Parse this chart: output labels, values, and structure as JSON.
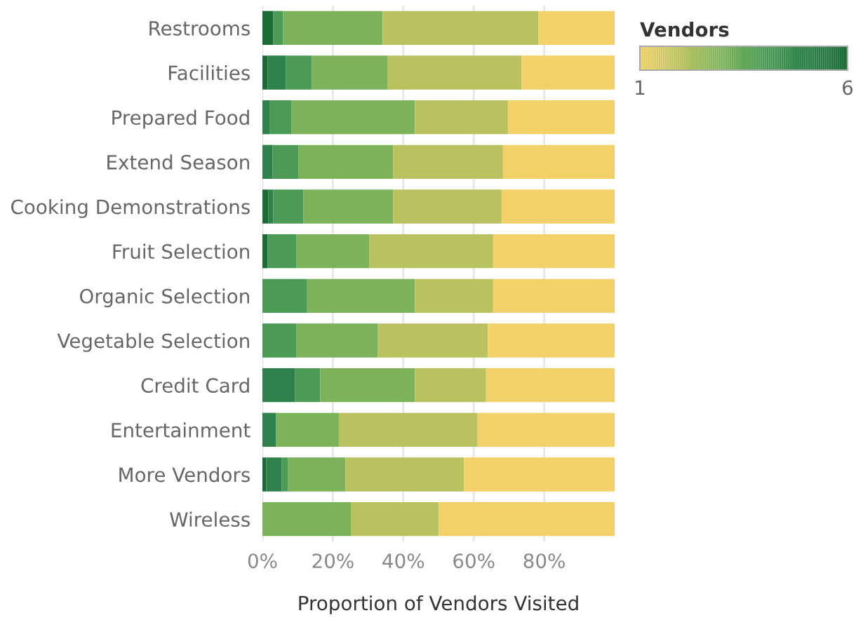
{
  "chart_data": {
    "type": "bar",
    "orientation": "horizontal",
    "stacked": true,
    "categories": [
      "Restrooms",
      "Facilities",
      "Prepared Food",
      "Extend Season",
      "Cooking Demonstrations",
      "Fruit Selection",
      "Organic Selection",
      "Vegetable Selection",
      "Credit Card",
      "Entertainment",
      "More Vendors",
      "Wireless"
    ],
    "series": [
      {
        "color": "#1b6b35",
        "values": [
          3.1,
          1.5,
          0,
          0,
          1.7,
          1.5,
          0,
          0,
          0,
          0,
          1.1,
          0
        ]
      },
      {
        "color": "#2e814a",
        "values": [
          0,
          5.2,
          2.0,
          2.9,
          1.4,
          0,
          0,
          0,
          9.3,
          3.9,
          4.4,
          0
        ]
      },
      {
        "color": "#4b9b56",
        "values": [
          2.8,
          7.3,
          6.3,
          7.4,
          8.5,
          8.2,
          12.7,
          9.7,
          7.1,
          0,
          1.8,
          0
        ]
      },
      {
        "color": "#7bb25a",
        "values": [
          28.2,
          21.6,
          35.0,
          26.8,
          25.5,
          20.6,
          30.6,
          23.1,
          26.9,
          17.8,
          16.3,
          25.1
        ]
      },
      {
        "color": "#b8c25f",
        "values": [
          44.3,
          38.0,
          26.4,
          31.2,
          30.8,
          35.2,
          22.2,
          31.2,
          20.2,
          39.4,
          33.6,
          25.0
        ]
      },
      {
        "color": "#f2d16b",
        "values": [
          21.6,
          26.4,
          30.3,
          31.7,
          32.1,
          34.5,
          34.5,
          36.0,
          36.5,
          38.9,
          42.8,
          49.9
        ]
      }
    ],
    "xlim": [
      0,
      100
    ],
    "xticks": [
      {
        "value": 0,
        "label": "0%"
      },
      {
        "value": 20,
        "label": "20%"
      },
      {
        "value": 40,
        "label": "40%"
      },
      {
        "value": 60,
        "label": "60%"
      },
      {
        "value": 80,
        "label": "80%"
      }
    ],
    "xlabel": "Proportion of Vendors Visited",
    "grid": "x",
    "clabel": "Vendors",
    "clim": [
      1,
      6
    ],
    "cticks": [
      1,
      6
    ]
  }
}
